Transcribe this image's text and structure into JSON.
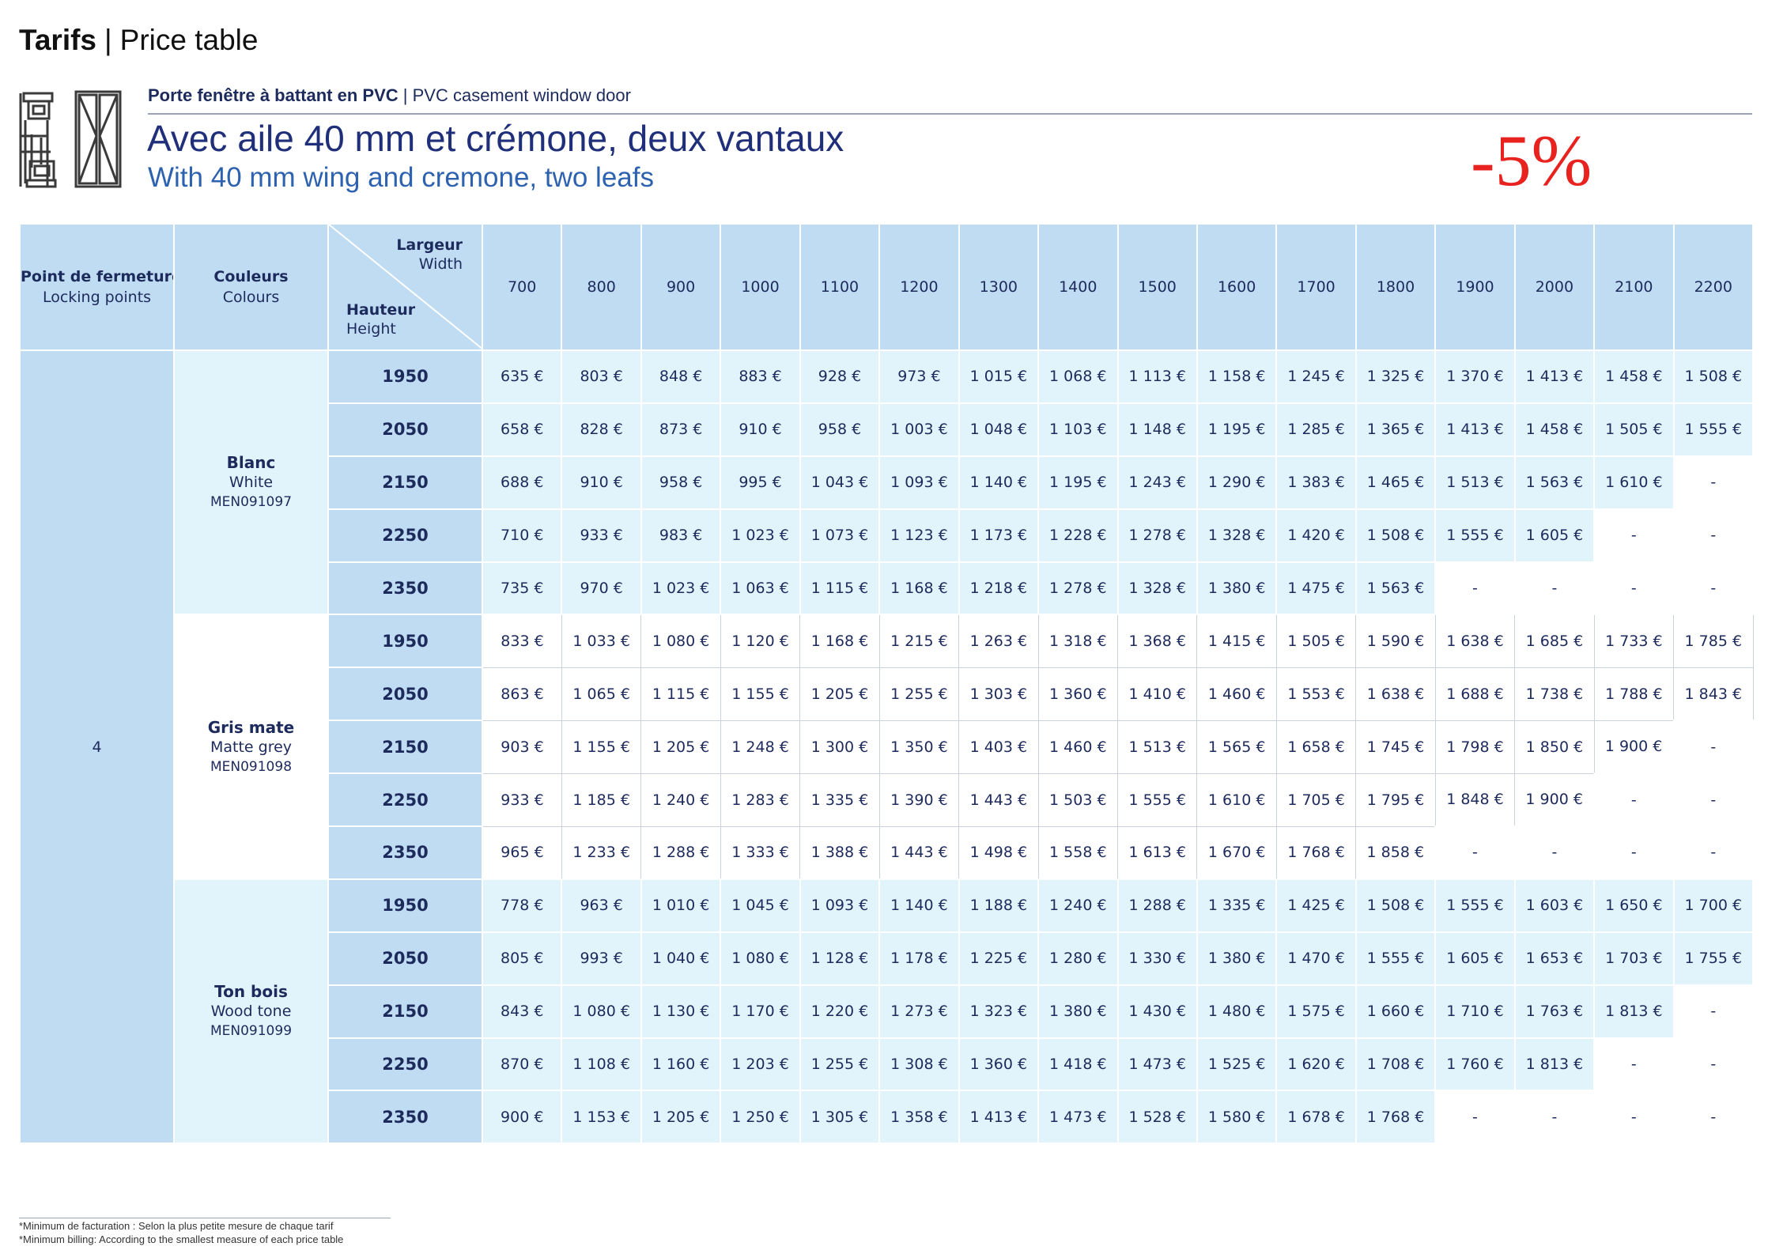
{
  "header": {
    "title_bold": "Tarifs",
    "title_sep": "|",
    "title_rest": "Price table"
  },
  "product": {
    "label_bold": "Porte fenêtre à battant en PVC",
    "label_sep": "|",
    "label_rest": "PVC casement window door",
    "title_fr": "Avec aile 40 mm et crémone, deux vantaux",
    "title_en": "With 40 mm wing and cremone, two leafs",
    "discount": "-5%",
    "icon": "window-door-profile-icon"
  },
  "table": {
    "locking_header_fr": "Point de fermeture",
    "locking_header_en": "Locking points",
    "colours_header_fr": "Couleurs",
    "colours_header_en": "Colours",
    "width_label_fr": "Largeur",
    "width_label_en": "Width",
    "height_label_fr": "Hauteur",
    "height_label_en": "Height",
    "locking_points": "4",
    "widths": [
      "700",
      "800",
      "900",
      "1000",
      "1100",
      "1200",
      "1300",
      "1400",
      "1500",
      "1600",
      "1700",
      "1800",
      "1900",
      "2000",
      "2100",
      "2200"
    ],
    "groups": [
      {
        "name_fr": "Blanc",
        "name_en": "White",
        "code": "MEN091097",
        "rows": [
          {
            "height": "1950",
            "prices": [
              "635 €",
              "803 €",
              "848 €",
              "883 €",
              "928 €",
              "973 €",
              "1 015 €",
              "1 068 €",
              "1 113 €",
              "1 158 €",
              "1 245 €",
              "1 325 €",
              "1 370 €",
              "1 413 €",
              "1 458 €",
              "1 508 €"
            ]
          },
          {
            "height": "2050",
            "prices": [
              "658 €",
              "828 €",
              "873 €",
              "910 €",
              "958 €",
              "1 003 €",
              "1 048 €",
              "1 103 €",
              "1 148 €",
              "1 195 €",
              "1 285 €",
              "1 365 €",
              "1 413 €",
              "1 458 €",
              "1 505 €",
              "1 555 €"
            ]
          },
          {
            "height": "2150",
            "prices": [
              "688 €",
              "910 €",
              "958 €",
              "995 €",
              "1 043 €",
              "1 093 €",
              "1 140 €",
              "1 195 €",
              "1 243 €",
              "1 290 €",
              "1 383 €",
              "1 465 €",
              "1 513 €",
              "1 563 €",
              "1 610 €",
              "-"
            ]
          },
          {
            "height": "2250",
            "prices": [
              "710 €",
              "933 €",
              "983 €",
              "1 023 €",
              "1 073 €",
              "1 123 €",
              "1 173 €",
              "1 228 €",
              "1 278 €",
              "1 328 €",
              "1 420 €",
              "1 508 €",
              "1 555 €",
              "1 605 €",
              "-",
              "-"
            ]
          },
          {
            "height": "2350",
            "prices": [
              "735 €",
              "970 €",
              "1 023 €",
              "1 063 €",
              "1 115 €",
              "1 168 €",
              "1 218 €",
              "1 278 €",
              "1 328 €",
              "1 380 €",
              "1 475 €",
              "1 563 €",
              "-",
              "-",
              "-",
              "-"
            ]
          }
        ]
      },
      {
        "name_fr": "Gris mate",
        "name_en": "Matte grey",
        "code": "MEN091098",
        "rows": [
          {
            "height": "1950",
            "prices": [
              "833 €",
              "1 033 €",
              "1 080 €",
              "1 120 €",
              "1 168 €",
              "1 215 €",
              "1 263 €",
              "1 318 €",
              "1 368 €",
              "1 415 €",
              "1 505 €",
              "1 590 €",
              "1 638 €",
              "1 685 €",
              "1 733 €",
              "1 785 €"
            ]
          },
          {
            "height": "2050",
            "prices": [
              "863 €",
              "1 065 €",
              "1 115 €",
              "1 155 €",
              "1 205 €",
              "1 255 €",
              "1 303 €",
              "1 360 €",
              "1 410 €",
              "1 460 €",
              "1 553 €",
              "1 638 €",
              "1 688 €",
              "1 738 €",
              "1 788 €",
              "1 843 €"
            ]
          },
          {
            "height": "2150",
            "prices": [
              "903 €",
              "1 155 €",
              "1 205 €",
              "1 248 €",
              "1 300 €",
              "1 350 €",
              "1 403 €",
              "1 460 €",
              "1 513 €",
              "1 565 €",
              "1 658 €",
              "1 745 €",
              "1 798 €",
              "1 850 €",
              "1 900 €",
              "-"
            ]
          },
          {
            "height": "2250",
            "prices": [
              "933 €",
              "1 185 €",
              "1 240 €",
              "1 283 €",
              "1 335 €",
              "1 390 €",
              "1 443 €",
              "1 503 €",
              "1 555 €",
              "1 610 €",
              "1 705 €",
              "1 795 €",
              "1 848 €",
              "1 900 €",
              "-",
              "-"
            ]
          },
          {
            "height": "2350",
            "prices": [
              "965 €",
              "1 233 €",
              "1 288 €",
              "1 333 €",
              "1 388 €",
              "1 443 €",
              "1 498 €",
              "1 558 €",
              "1 613 €",
              "1 670 €",
              "1 768 €",
              "1 858 €",
              "-",
              "-",
              "-",
              "-"
            ]
          }
        ]
      },
      {
        "name_fr": "Ton bois",
        "name_en": "Wood tone",
        "code": "MEN091099",
        "rows": [
          {
            "height": "1950",
            "prices": [
              "778 €",
              "963 €",
              "1 010 €",
              "1 045 €",
              "1 093 €",
              "1 140 €",
              "1 188 €",
              "1 240 €",
              "1 288 €",
              "1 335 €",
              "1 425 €",
              "1 508 €",
              "1 555 €",
              "1 603 €",
              "1 650 €",
              "1 700 €"
            ]
          },
          {
            "height": "2050",
            "prices": [
              "805 €",
              "993 €",
              "1 040 €",
              "1 080 €",
              "1 128 €",
              "1 178 €",
              "1 225 €",
              "1 280 €",
              "1 330 €",
              "1 380 €",
              "1 470 €",
              "1 555 €",
              "1 605 €",
              "1 653 €",
              "1 703 €",
              "1 755 €"
            ]
          },
          {
            "height": "2150",
            "prices": [
              "843 €",
              "1 080 €",
              "1 130 €",
              "1 170 €",
              "1 220 €",
              "1 273 €",
              "1 323 €",
              "1 380 €",
              "1 430 €",
              "1 480 €",
              "1 575 €",
              "1 660 €",
              "1 710 €",
              "1 763 €",
              "1 813 €",
              "-"
            ]
          },
          {
            "height": "2250",
            "prices": [
              "870 €",
              "1 108 €",
              "1 160 €",
              "1 203 €",
              "1 255 €",
              "1 308 €",
              "1 360 €",
              "1 418 €",
              "1 473 €",
              "1 525 €",
              "1 620 €",
              "1 708 €",
              "1 760 €",
              "1 813 €",
              "-",
              "-"
            ]
          },
          {
            "height": "2350",
            "prices": [
              "900 €",
              "1 153 €",
              "1 205 €",
              "1 250 €",
              "1 305 €",
              "1 358 €",
              "1 413 €",
              "1 473 €",
              "1 528 €",
              "1 580 €",
              "1 678 €",
              "1 768 €",
              "-",
              "-",
              "-",
              "-"
            ]
          }
        ]
      }
    ]
  },
  "footnote": {
    "fr": "*Minimum de facturation : Selon la plus petite mesure de chaque tarif",
    "en": "*Minimum billing: According to the smallest measure of each price table"
  },
  "colors": {
    "header_blue": "#c0dcf3",
    "light_cyan": "#e2f4fb",
    "navy_text": "#1d2a5c",
    "discount_red": "#e8231f"
  }
}
